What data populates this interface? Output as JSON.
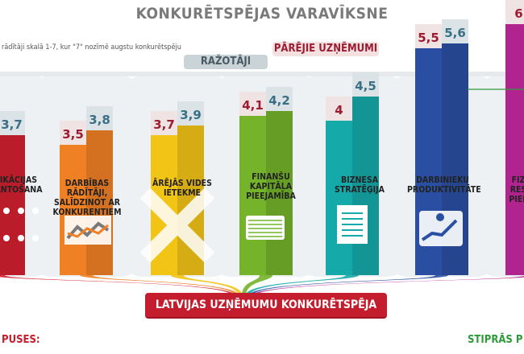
{
  "title": "KONKURĒTSPĒJAS VARAVĪKSNE",
  "subtitle": "rādītāji skalā 1-7, kur \"7\" nozīmē augstu konkurētspēju",
  "group_labels": {
    "producers": "RAŽOTĀJI",
    "others": "PĀRĒJIE UZŅĒMUMI"
  },
  "banner": "LATVIJAS UZŅĒMUMU KONKURĒTSPĒJA",
  "side_labels": {
    "weak": "PUSES:",
    "strong": "STIPRĀS P"
  },
  "colors": {
    "producers_value": "#3a6f86",
    "others_value": "#9c1c32",
    "categories": [
      "#d5202f",
      "#f08024",
      "#f2c416",
      "#74b32a",
      "#16a9a9",
      "#2a4fa2",
      "#b1248f"
    ]
  },
  "chart_data": {
    "type": "bar",
    "title": "KONKURĒTSPĒJAS VARAVĪKSNE",
    "ylim": [
      1,
      7
    ],
    "categories": [
      "IKĀCIJAS ANTOŠANA",
      "DARBĪBAS RĀDĪTĀJI, SALĪDZINOT AR KONKURENTIEM",
      "ĀRĒJĀS VIDES IETEKME",
      "FINANŠU KAPITĀLA PIEEJAMĪBA",
      "BIZNESA STRATĒĢIJA",
      "DARBINIEKU PRODUKTIVITĀTE",
      "FIZ RES PIEE"
    ],
    "series": [
      {
        "name": "PĀRĒJIE UZŅĒMUMI",
        "values": [
          null,
          3.5,
          3.7,
          4.1,
          4,
          5.5,
          6
        ]
      },
      {
        "name": "RAŽOTĀJI",
        "values": [
          3.7,
          3.8,
          3.9,
          4.2,
          4.5,
          5.6,
          null
        ]
      }
    ],
    "value_labels": {
      "PĀRĒJIE UZŅĒMUMI": [
        "",
        "3,5",
        "3,7",
        "4,1",
        "4",
        "5,5",
        "6"
      ],
      "RAŽOTĀJI": [
        "3,7",
        "3,8",
        "3,9",
        "4,2",
        "4,5",
        "5,6",
        ""
      ]
    }
  }
}
